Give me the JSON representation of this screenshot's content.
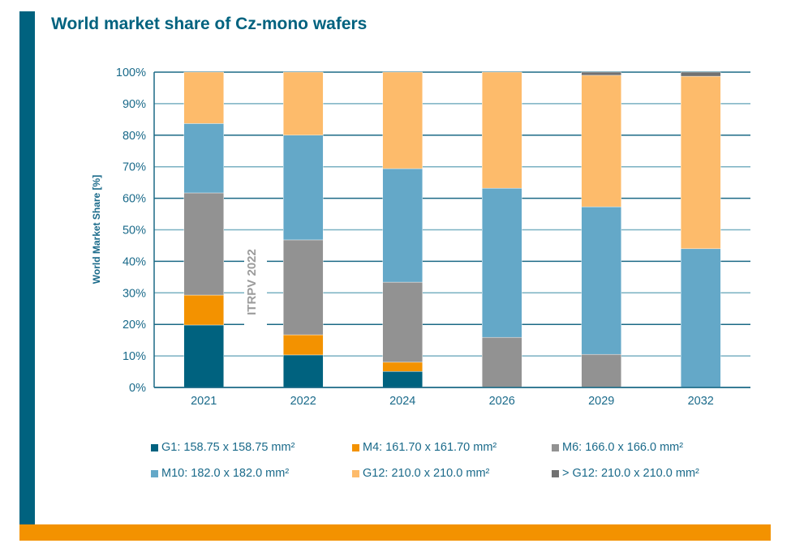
{
  "page": {
    "title": "World market share of Cz-mono wafers",
    "brand_colors": {
      "primary": "#00627f",
      "accent": "#f39200"
    }
  },
  "chart_data": {
    "type": "bar",
    "stacked": true,
    "title": "World market share of Cz-mono wafers",
    "xlabel": "",
    "ylabel": "World Market Share [%]",
    "ylim": [
      0,
      100
    ],
    "yticks": [
      0,
      10,
      20,
      30,
      40,
      50,
      60,
      70,
      80,
      90,
      100
    ],
    "ytick_labels": [
      "0%",
      "10%",
      "20%",
      "30%",
      "40%",
      "50%",
      "60%",
      "70%",
      "80%",
      "90%",
      "100%"
    ],
    "grid": true,
    "categories": [
      "2021",
      "2022",
      "2024",
      "2026",
      "2029",
      "2032"
    ],
    "watermark": "ITRPV 2022",
    "legend_position": "bottom",
    "series": [
      {
        "name": "G1: 158.75 x 158.75 mm²",
        "color": "#00627f",
        "values": [
          19.8,
          10.3,
          5.1,
          0,
          0,
          0
        ]
      },
      {
        "name": "M4: 161.70 x 161.70 mm²",
        "color": "#f39200",
        "values": [
          9.5,
          6.4,
          2.9,
          0,
          0,
          0
        ]
      },
      {
        "name": "M6: 166.0 x 166.0 mm²",
        "color": "#929292",
        "values": [
          32.4,
          30.1,
          25.4,
          15.9,
          10.5,
          0
        ]
      },
      {
        "name": "M10: 182.0 x 182.0 mm²",
        "color": "#64a8c8",
        "values": [
          22.0,
          33.2,
          36.0,
          47.3,
          46.8,
          44.0
        ]
      },
      {
        "name": "G12: 210.0 x 210.0 mm²",
        "color": "#fdbb6b",
        "values": [
          16.3,
          20.0,
          30.6,
          36.8,
          41.7,
          54.7
        ]
      },
      {
        "name": "> G12: 210.0 x 210.0 mm²",
        "color": "#717171",
        "values": [
          0,
          0,
          0,
          0,
          1.0,
          1.3
        ]
      }
    ]
  }
}
